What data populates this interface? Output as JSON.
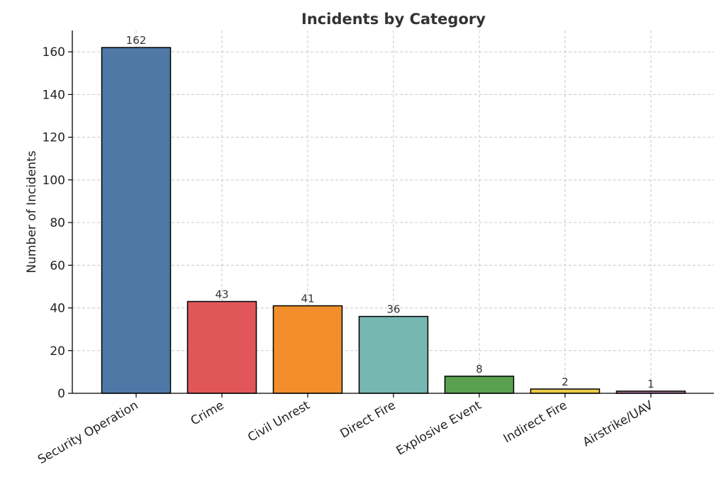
{
  "chart_data": {
    "type": "bar",
    "title": "Incidents by Category",
    "xlabel": "",
    "ylabel": "Number of Incidents",
    "categories": [
      "Security Operation",
      "Crime",
      "Civil Unrest",
      "Direct Fire",
      "Explosive Event",
      "Indirect Fire",
      "Airstrike/UAV"
    ],
    "values": [
      162,
      43,
      41,
      36,
      8,
      2,
      1
    ],
    "data_labels": [
      "162",
      "43",
      "41",
      "36",
      "8",
      "2",
      "1"
    ],
    "colors": [
      "#4e79a7",
      "#e15759",
      "#f28e2b",
      "#76b7b2",
      "#59a14f",
      "#edc948",
      "#b07aa1"
    ],
    "ylim": [
      0,
      170
    ],
    "yticks": [
      0,
      20,
      40,
      60,
      80,
      100,
      120,
      140,
      160
    ],
    "ytick_labels": [
      "0",
      "20",
      "40",
      "60",
      "80",
      "100",
      "120",
      "140",
      "160"
    ],
    "grid": true,
    "legend": "none"
  }
}
